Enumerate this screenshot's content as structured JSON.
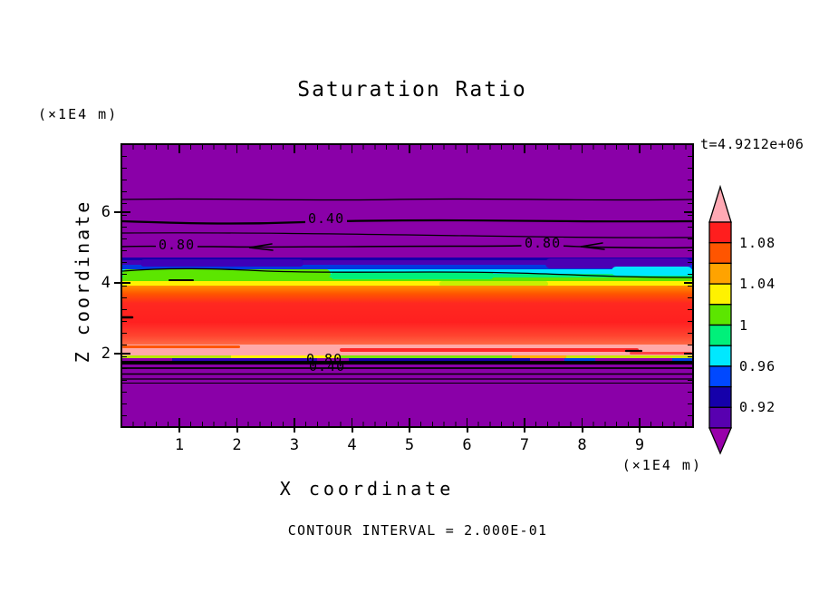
{
  "title": "Saturation Ratio",
  "annotations": {
    "time_label": "t=4.9212e+06",
    "contour_interval_note": "CONTOUR INTERVAL = 2.000E-01",
    "y_axis_unit": "(×1E4 m)",
    "x_axis_unit": "(×1E4 m)"
  },
  "axes": {
    "x_label": "X coordinate",
    "y_label": "Z coordinate",
    "x_ticks": [
      "1",
      "2",
      "3",
      "4",
      "5",
      "6",
      "7",
      "8",
      "9"
    ],
    "y_ticks": [
      "2",
      "4",
      "6"
    ]
  },
  "colorbar": {
    "tick_labels": [
      "1.08",
      "1.04",
      "1",
      "0.96",
      "0.92"
    ],
    "segment_colors_top_to_bottom": [
      "#FF1E1E",
      "#FF5500",
      "#FFA300",
      "#FFF200",
      "#5CE600",
      "#00F07A",
      "#00E8FF",
      "#0048FF",
      "#1500AA",
      "#5800B0"
    ],
    "top_arrow_color": "#FFA9B4",
    "bottom_arrow_color": "#9800AA",
    "background_purple": "#8A00A8"
  },
  "contours": {
    "labels": [
      {
        "text": "0.40"
      },
      {
        "text": "0.80"
      },
      {
        "text": "0.80"
      },
      {
        "text": "0.80"
      },
      {
        "text": "0.40"
      }
    ]
  },
  "chart_data": {
    "type": "heatmap",
    "title": "Saturation Ratio",
    "xlabel": "X coordinate (×1E4 m)",
    "ylabel": "Z coordinate (×1E4 m)",
    "xlim": [
      0,
      10
    ],
    "ylim": [
      0,
      8
    ],
    "x_tick_values": [
      1,
      2,
      3,
      4,
      5,
      6,
      7,
      8,
      9
    ],
    "y_tick_values": [
      2,
      4,
      6
    ],
    "time_annotation": "t=4.9212e+06",
    "contour_interval": 0.2,
    "labeled_line_contours": [
      0.4,
      0.8
    ],
    "line_contour_levels_visible": [
      0.2,
      0.4,
      0.6,
      0.8,
      1.0
    ],
    "colorbar_levels": {
      "min": 0.9,
      "max": 1.1,
      "step": 0.02,
      "labeled_values": [
        1.08,
        1.04,
        1.0,
        0.96,
        0.92
      ]
    },
    "field_summary_layers_top_to_bottom": [
      {
        "z_range": [
          4.6,
          8.0
        ],
        "saturation_ratio": "< 0.90",
        "appearance": "uniform purple; 0.2/0.4/0.6/0.8 contour lines cross horizontally near z 5-6.5"
      },
      {
        "z_range": [
          4.1,
          4.6
        ],
        "saturation_ratio": "0.90 to 1.02",
        "appearance": "thin rainbow transition band: indigo, blue, cyan, spring green, green, yellow"
      },
      {
        "z_range": [
          2.3,
          4.1
        ],
        "saturation_ratio": "1.04 to >1.10",
        "appearance": "mottled orange/red with pink (>1.10) streaks"
      },
      {
        "z_range": [
          2.0,
          2.3
        ],
        "saturation_ratio": "> 1.10",
        "appearance": "pink band with red streaks"
      },
      {
        "z_range": [
          0.0,
          2.0
        ],
        "saturation_ratio": "< 0.90",
        "appearance": "purple; compressed black contour band at z≈2 with overlapping 0.80/0.40 labels"
      }
    ]
  }
}
